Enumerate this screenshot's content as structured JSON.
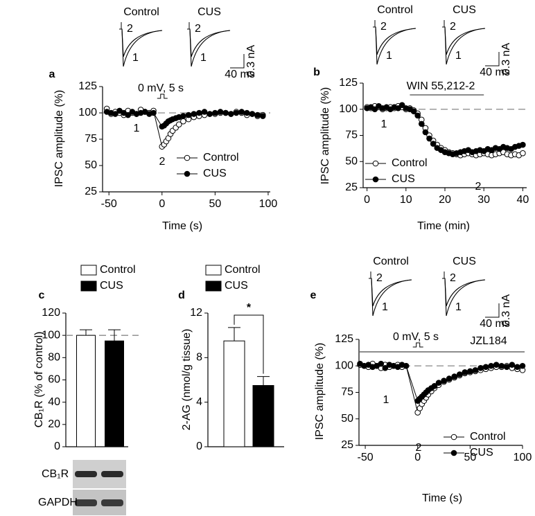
{
  "chart_data": [
    {
      "panel": "a",
      "type": "line",
      "inset": {
        "labels": [
          "Control",
          "CUS"
        ],
        "trace_labels": [
          "2",
          "1"
        ],
        "scale_x": "40 ms",
        "scale_y": "0.3 nA"
      },
      "stimulus": "0 mV, 5 s",
      "point_labels": [
        "1",
        "2"
      ],
      "xlabel": "Time (s)",
      "ylabel": "IPSC amplitude (%)",
      "xlim": [
        -56,
        102
      ],
      "ylim": [
        25,
        125
      ],
      "xticks": [
        -50,
        0,
        50,
        100
      ],
      "yticks": [
        25,
        50,
        75,
        100,
        125
      ],
      "ref_line": 100,
      "x": [
        -52,
        -48,
        -44,
        -40,
        -36,
        -32,
        -28,
        -24,
        -20,
        -16,
        -12,
        -8,
        0,
        2,
        4,
        6,
        8,
        10,
        13,
        16,
        20,
        25,
        30,
        35,
        40,
        45,
        50,
        55,
        60,
        65,
        70,
        75,
        80,
        85,
        90,
        95
      ],
      "series": [
        {
          "name": "Control",
          "color": "#000000",
          "marker_fill": "#ffffff",
          "values": [
            104,
            99,
            101,
            100,
            98,
            102,
            100,
            99,
            103,
            101,
            100,
            102,
            68,
            70,
            73,
            76,
            80,
            83,
            86,
            89,
            92,
            94,
            96,
            97,
            98,
            99,
            99,
            100,
            100,
            99,
            101,
            100,
            98,
            99,
            97,
            98
          ]
        },
        {
          "name": "CUS",
          "color": "#000000",
          "marker_fill": "#000000",
          "values": [
            101,
            100,
            99,
            102,
            100,
            98,
            101,
            99,
            100,
            101,
            99,
            100,
            87,
            88,
            90,
            92,
            93,
            94,
            95,
            96,
            97,
            98,
            99,
            100,
            101,
            99,
            100,
            101,
            100,
            99,
            100,
            101,
            100,
            99,
            98,
            97
          ]
        }
      ]
    },
    {
      "panel": "b",
      "type": "line",
      "inset": {
        "labels": [
          "Control",
          "CUS"
        ],
        "trace_labels": [
          "2",
          "1"
        ],
        "scale_x": "40 ms",
        "scale_y": "0.3 nA"
      },
      "drug": "WIN 55,212-2",
      "drug_span": [
        11,
        30
      ],
      "point_labels": [
        "1",
        "2"
      ],
      "xlabel": "Time (min)",
      "ylabel": "IPSC amplitude (%)",
      "xlim": [
        -1,
        41
      ],
      "ylim": [
        25,
        125
      ],
      "xticks": [
        0,
        10,
        20,
        30,
        40
      ],
      "yticks": [
        25,
        50,
        75,
        100,
        125
      ],
      "ref_line": 100,
      "x": [
        0,
        1,
        2,
        3,
        4,
        5,
        6,
        7,
        8,
        9,
        10,
        11,
        12,
        13,
        14,
        15,
        16,
        17,
        18,
        19,
        20,
        21,
        22,
        23,
        24,
        25,
        26,
        27,
        28,
        29,
        30,
        31,
        32,
        33,
        34,
        35,
        36,
        37,
        38,
        39,
        40
      ],
      "series": [
        {
          "name": "Control",
          "color": "#000000",
          "marker_fill": "#ffffff",
          "values": [
            102,
            101,
            103,
            102,
            100,
            101,
            102,
            101,
            103,
            102,
            100,
            101,
            99,
            96,
            90,
            82,
            75,
            70,
            66,
            63,
            61,
            59,
            58,
            57,
            56,
            57,
            58,
            57,
            56,
            57,
            58,
            57,
            56,
            57,
            58,
            59,
            57,
            56,
            57,
            56,
            58
          ]
        },
        {
          "name": "CUS",
          "color": "#000000",
          "marker_fill": "#000000",
          "values": [
            101,
            102,
            100,
            103,
            101,
            102,
            100,
            102,
            101,
            104,
            101,
            100,
            98,
            94,
            86,
            78,
            72,
            67,
            63,
            61,
            59,
            58,
            57,
            58,
            59,
            60,
            61,
            59,
            60,
            61,
            60,
            62,
            61,
            63,
            62,
            64,
            63,
            62,
            64,
            65,
            66
          ]
        }
      ]
    },
    {
      "panel": "c",
      "type": "bar",
      "ylabel": "CB₁R (% of control)",
      "ylim": [
        0,
        120
      ],
      "yticks": [
        0,
        20,
        40,
        60,
        80,
        100,
        120
      ],
      "ref_line": 100,
      "blot_labels": [
        "CB₁R",
        "GAPDH"
      ],
      "series": [
        {
          "name": "Control",
          "color": "#ffffff",
          "values": [
            100
          ],
          "errors": [
            5
          ]
        },
        {
          "name": "CUS",
          "color": "#000000",
          "values": [
            95
          ],
          "errors": [
            10
          ]
        }
      ]
    },
    {
      "panel": "d",
      "type": "bar",
      "ylabel": "2-AG (nmol/g tissue)",
      "ylim": [
        0,
        12
      ],
      "yticks": [
        0,
        4,
        8,
        12
      ],
      "significance": "*",
      "series": [
        {
          "name": "Control",
          "color": "#ffffff",
          "values": [
            9.5
          ],
          "errors": [
            1.2
          ]
        },
        {
          "name": "CUS",
          "color": "#000000",
          "values": [
            5.5
          ],
          "errors": [
            0.8
          ]
        }
      ]
    },
    {
      "panel": "e",
      "type": "line",
      "inset": {
        "labels": [
          "Control",
          "CUS"
        ],
        "trace_labels": [
          "2",
          "1"
        ],
        "scale_x": "40 ms",
        "scale_y": "0.3 nA"
      },
      "stimulus": "0 mV, 5 s",
      "drug": "JZL184",
      "point_labels": [
        "1",
        "2"
      ],
      "xlabel": "Time (s)",
      "ylabel": "IPSC amplitude (%)",
      "xlim": [
        -56,
        100
      ],
      "ylim": [
        25,
        125
      ],
      "xticks": [
        -50,
        0,
        50,
        100
      ],
      "yticks": [
        25,
        50,
        75,
        100,
        125
      ],
      "ref_line": 100,
      "x": [
        -55,
        -51,
        -47,
        -43,
        -39,
        -35,
        -31,
        -27,
        -23,
        -19,
        -15,
        -11,
        0,
        2,
        4,
        6,
        8,
        10,
        13,
        16,
        20,
        25,
        30,
        35,
        40,
        45,
        50,
        55,
        60,
        65,
        70,
        75,
        80,
        85,
        90,
        95,
        100
      ],
      "series": [
        {
          "name": "Control",
          "color": "#000000",
          "marker_fill": "#ffffff",
          "values": [
            101,
            100,
            99,
            102,
            100,
            98,
            101,
            99,
            100,
            101,
            99,
            100,
            56,
            60,
            64,
            67,
            70,
            73,
            76,
            79,
            82,
            85,
            87,
            89,
            91,
            93,
            94,
            95,
            96,
            97,
            98,
            99,
            99,
            100,
            98,
            97,
            96
          ]
        },
        {
          "name": "CUS",
          "color": "#000000",
          "marker_fill": "#000000",
          "values": [
            102,
            100,
            101,
            99,
            100,
            102,
            98,
            101,
            100,
            99,
            101,
            100,
            67,
            69,
            71,
            73,
            75,
            77,
            79,
            81,
            84,
            86,
            88,
            90,
            92,
            94,
            95,
            96,
            98,
            99,
            100,
            101,
            100,
            99,
            101,
            99,
            100
          ]
        }
      ]
    }
  ]
}
